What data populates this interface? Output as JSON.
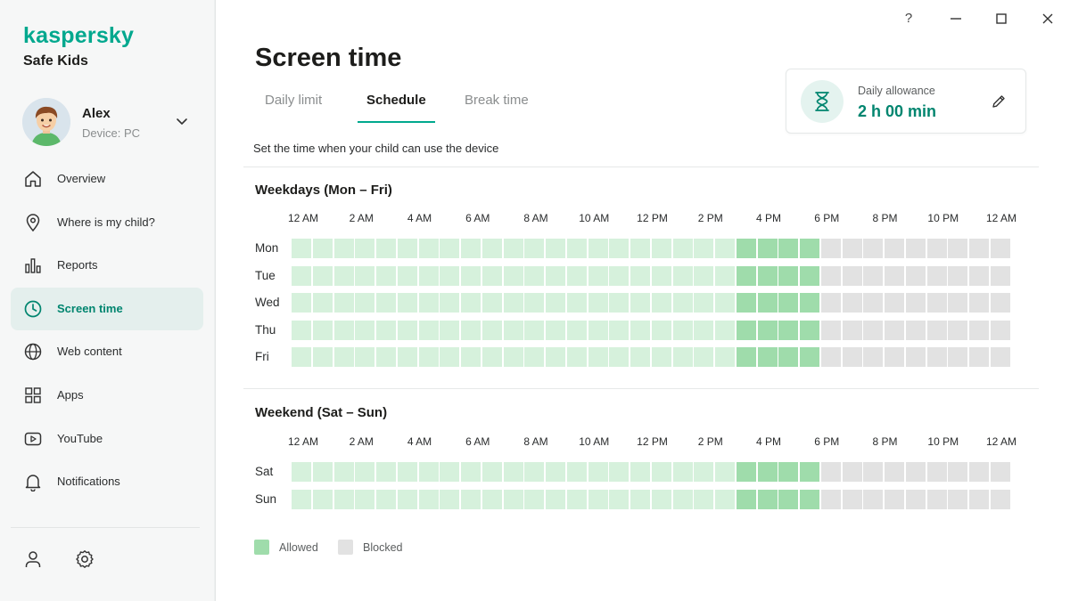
{
  "brand": {
    "logo": "kaspersky",
    "product": "Safe Kids"
  },
  "profile": {
    "name": "Alex",
    "device": "Device: PC"
  },
  "nav": [
    {
      "id": "overview",
      "label": "Overview",
      "icon": "home-icon",
      "active": false
    },
    {
      "id": "where",
      "label": "Where is my child?",
      "icon": "location-pin-icon",
      "active": false
    },
    {
      "id": "reports",
      "label": "Reports",
      "icon": "bar-chart-icon",
      "active": false
    },
    {
      "id": "screen-time",
      "label": "Screen time",
      "icon": "clock-icon",
      "active": true
    },
    {
      "id": "web-content",
      "label": "Web content",
      "icon": "globe-icon",
      "active": false
    },
    {
      "id": "apps",
      "label": "Apps",
      "icon": "grid-icon",
      "active": false
    },
    {
      "id": "youtube",
      "label": "YouTube",
      "icon": "play-icon",
      "active": false
    },
    {
      "id": "notifications",
      "label": "Notifications",
      "icon": "bell-icon",
      "active": false
    }
  ],
  "footer": {
    "account_icon": "person-icon",
    "settings_icon": "gear-icon"
  },
  "window": {
    "help_label": "?"
  },
  "page": {
    "title": "Screen time",
    "tabs": [
      {
        "label": "Daily limit",
        "active": false
      },
      {
        "label": "Schedule",
        "active": true
      },
      {
        "label": "Break time",
        "active": false
      }
    ],
    "description": "Set the time when your child can use the device"
  },
  "allowance": {
    "label": "Daily allowance",
    "value": "2 h 00 min",
    "icon": "hourglass-icon"
  },
  "schedule": {
    "hour_labels": [
      "12 AM",
      "2 AM",
      "4 AM",
      "6 AM",
      "8 AM",
      "10 AM",
      "12 PM",
      "2 PM",
      "4 PM",
      "6 PM",
      "8 PM",
      "10 PM",
      "12 AM"
    ],
    "slots_per_day": 34,
    "allowed_slots": 21,
    "highlighted_slots": [
      21,
      22,
      23,
      24
    ],
    "weekdays": {
      "title": "Weekdays (Mon – Fri)",
      "days": [
        "Mon",
        "Tue",
        "Wed",
        "Thu",
        "Fri"
      ]
    },
    "weekend": {
      "title": "Weekend (Sat – Sun)",
      "days": [
        "Sat",
        "Sun"
      ]
    }
  },
  "legend": {
    "allowed": {
      "label": "Allowed",
      "color": "#9fdcab"
    },
    "blocked": {
      "label": "Blocked",
      "color": "#e2e2e2"
    }
  },
  "colors": {
    "accent": "#00a88e",
    "accent_dark": "#00856f",
    "allowed_light": "#d6f1dc",
    "allowed_active": "#9fdcab",
    "blocked": "#e2e2e2"
  }
}
